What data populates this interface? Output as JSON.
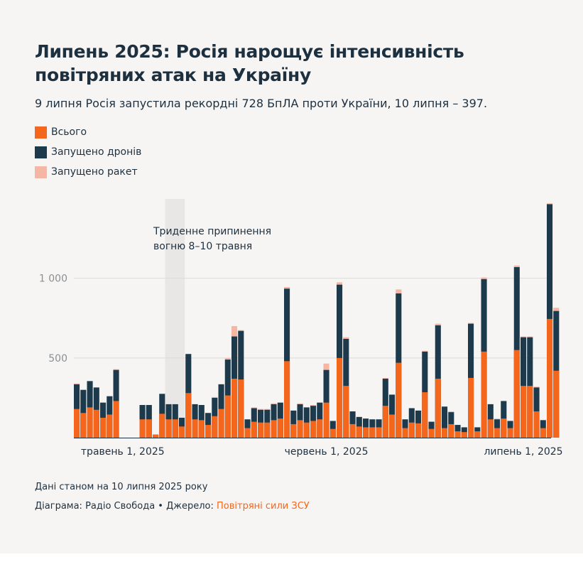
{
  "title": "Липень 2025: Росія нарощує інтенсивність повітряних атак на Україну",
  "subtitle": "9 липня Росія запустила рекордні 728 БпЛА проти України, 10 липня – 397.",
  "legend": [
    {
      "label": "Всього",
      "color": "#f4661c"
    },
    {
      "label": "Запущено дронів",
      "color": "#1d3a4c"
    },
    {
      "label": "Запущено ракет",
      "color": "#f5b7a3"
    }
  ],
  "annotation": {
    "line1": "Триденне припинення",
    "line2": "вогню 8–10 травня"
  },
  "footer": {
    "note": "Дані станом на 10 липня 2025 року",
    "credit_prefix": "Діаграма: Радіо Свобода • Джерело: ",
    "source": "Повітряні сили ЗСУ"
  },
  "chart_data": {
    "type": "bar",
    "ylim": [
      0,
      1480
    ],
    "yticks": [
      500,
      1000
    ],
    "ytick_labels": [
      "500",
      "1 000"
    ],
    "xtick_labels": [
      "травень 1, 2025",
      "червень 1, 2025",
      "липень 1, 2025"
    ],
    "xtick_dates": [
      "2025-05-01",
      "2025-06-01",
      "2025-07-01"
    ],
    "shaded_range": [
      "2025-05-08",
      "2025-05-10"
    ],
    "dates_start": "2025-04-24",
    "series": [
      {
        "name": "Всього",
        "values": [
          180,
          155,
          190,
          175,
          125,
          145,
          230,
          0,
          0,
          0,
          115,
          115,
          20,
          150,
          115,
          115,
          70,
          280,
          115,
          110,
          80,
          135,
          180,
          265,
          370,
          365,
          60,
          100,
          95,
          95,
          110,
          120,
          480,
          85,
          110,
          95,
          105,
          115,
          220,
          55,
          500,
          325,
          85,
          70,
          65,
          65,
          65,
          200,
          145,
          470,
          60,
          95,
          90,
          285,
          55,
          370,
          60,
          85,
          40,
          35,
          375,
          40,
          540,
          115,
          60,
          120,
          60,
          550,
          325,
          325,
          165,
          60,
          745,
          420
        ]
      },
      {
        "name": "Запущено дронів",
        "values": [
          335,
          300,
          355,
          315,
          220,
          260,
          425,
          0,
          0,
          0,
          205,
          205,
          20,
          275,
          210,
          210,
          125,
          525,
          210,
          205,
          155,
          250,
          335,
          490,
          635,
          670,
          115,
          185,
          175,
          175,
          210,
          220,
          935,
          170,
          210,
          190,
          200,
          220,
          425,
          105,
          960,
          620,
          165,
          130,
          120,
          115,
          115,
          370,
          270,
          905,
          115,
          185,
          170,
          540,
          100,
          705,
          195,
          160,
          80,
          65,
          715,
          65,
          995,
          210,
          115,
          230,
          105,
          1070,
          630,
          630,
          315,
          110,
          1465,
          795
        ]
      },
      {
        "name": "Запущено ракет",
        "values": [
          5,
          0,
          0,
          0,
          0,
          0,
          5,
          0,
          0,
          0,
          0,
          0,
          0,
          0,
          0,
          0,
          0,
          0,
          0,
          0,
          0,
          5,
          0,
          10,
          65,
          5,
          0,
          5,
          5,
          5,
          5,
          0,
          10,
          0,
          5,
          0,
          5,
          0,
          40,
          0,
          15,
          10,
          0,
          0,
          0,
          0,
          0,
          5,
          0,
          25,
          0,
          0,
          0,
          5,
          0,
          10,
          0,
          5,
          0,
          0,
          5,
          0,
          10,
          0,
          5,
          0,
          0,
          10,
          5,
          5,
          5,
          0,
          5,
          20
        ]
      }
    ]
  }
}
